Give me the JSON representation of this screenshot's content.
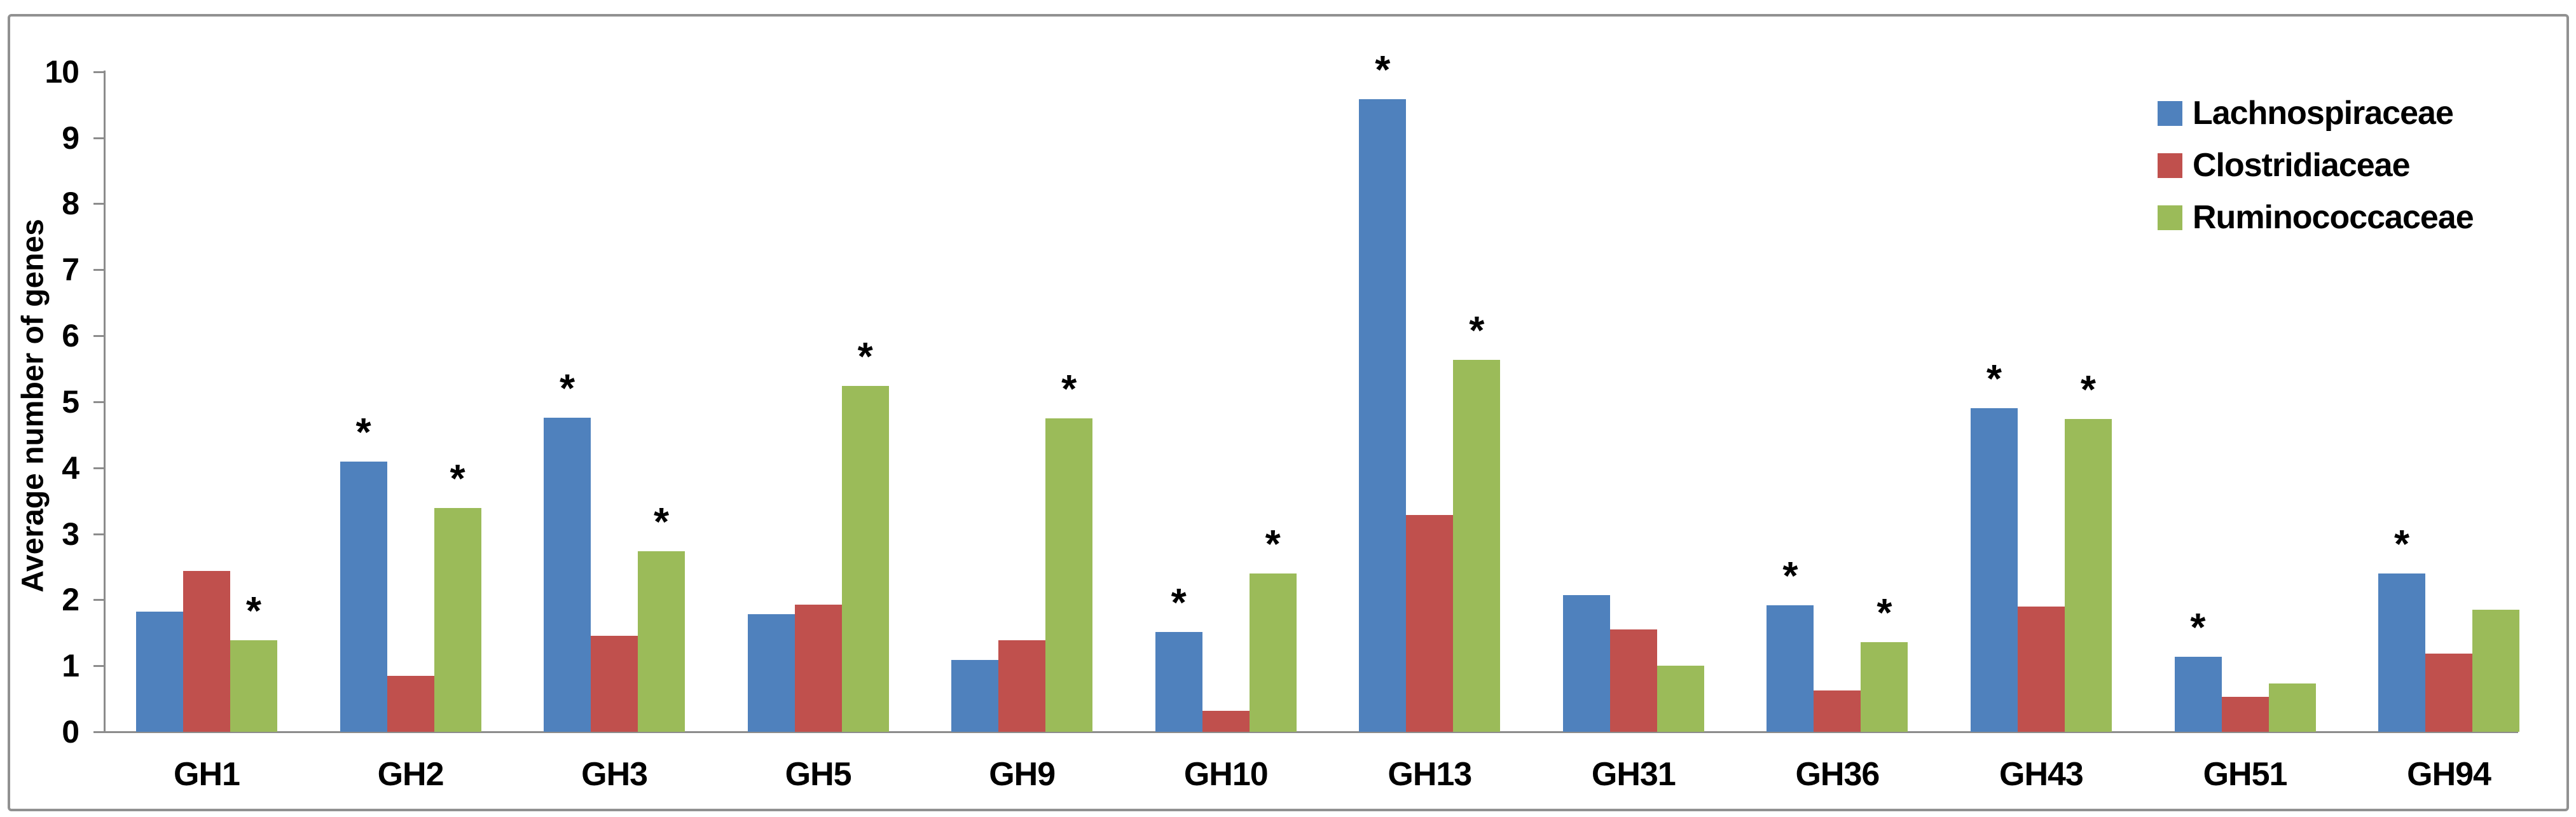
{
  "figure": {
    "background": "#FFFFFF",
    "border_color": "#919191",
    "axis_color": "#8C8C8C",
    "text_color": "#000000"
  },
  "chart_data": {
    "type": "bar",
    "title": "",
    "xlabel": "",
    "ylabel": "Average number of genes",
    "ylim": [
      0,
      10
    ],
    "ytick_interval": 1,
    "yticks": [
      "0",
      "1",
      "2",
      "3",
      "4",
      "5",
      "6",
      "7",
      "8",
      "9",
      "10"
    ],
    "grid": false,
    "legend_position": "top-right",
    "significance_marker": "*",
    "categories": [
      "GH1",
      "GH2",
      "GH3",
      "GH5",
      "GH9",
      "GH10",
      "GH13",
      "GH31",
      "GH36",
      "GH43",
      "GH51",
      "GH94"
    ],
    "series": [
      {
        "name": "Lachnospiraceae",
        "color": "#4F81BD",
        "values": [
          1.82,
          4.09,
          4.76,
          1.78,
          1.09,
          1.51,
          9.58,
          2.07,
          1.92,
          4.9,
          1.14,
          2.4
        ],
        "significant": [
          false,
          true,
          true,
          false,
          false,
          true,
          true,
          false,
          true,
          true,
          true,
          true
        ]
      },
      {
        "name": "Clostridiaceae",
        "color": "#C0504D",
        "values": [
          2.44,
          0.85,
          1.45,
          1.93,
          1.39,
          0.32,
          3.28,
          1.55,
          0.63,
          1.9,
          0.53,
          1.18
        ],
        "significant": [
          false,
          false,
          false,
          false,
          false,
          false,
          false,
          false,
          false,
          false,
          false,
          false
        ]
      },
      {
        "name": "Ruminococcaceae",
        "color": "#9BBB59",
        "values": [
          1.39,
          3.39,
          2.74,
          5.24,
          4.75,
          2.4,
          5.63,
          1.0,
          1.36,
          4.74,
          0.73,
          1.85
        ],
        "significant": [
          true,
          true,
          true,
          true,
          true,
          true,
          true,
          false,
          true,
          true,
          false,
          false
        ]
      }
    ]
  }
}
